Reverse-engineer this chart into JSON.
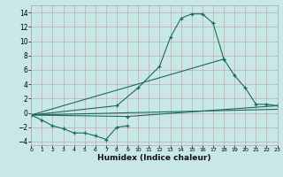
{
  "xlabel": "Humidex (Indice chaleur)",
  "bg_color": "#c8e8e8",
  "grid_color": "#c8a8a8",
  "line_color": "#1a6b5a",
  "xlim": [
    0,
    23
  ],
  "ylim": [
    -4.5,
    15
  ],
  "xticks": [
    0,
    1,
    2,
    3,
    4,
    5,
    6,
    7,
    8,
    9,
    10,
    11,
    12,
    13,
    14,
    15,
    16,
    17,
    18,
    19,
    20,
    21,
    22,
    23
  ],
  "yticks": [
    -4,
    -2,
    0,
    2,
    4,
    6,
    8,
    10,
    12,
    14
  ],
  "series1_x": [
    0,
    8,
    10,
    12,
    13,
    14,
    15,
    16,
    17,
    18
  ],
  "series1_y": [
    -0.3,
    1.0,
    3.5,
    6.5,
    10.5,
    13.2,
    13.8,
    13.8,
    12.5,
    7.5
  ],
  "series2_x": [
    0,
    18,
    19,
    20,
    21,
    22,
    23
  ],
  "series2_y": [
    -0.3,
    7.5,
    5.2,
    3.5,
    1.2,
    1.2,
    1.0
  ],
  "series3_x": [
    0,
    1,
    2,
    3,
    4,
    5,
    6,
    7,
    8,
    9
  ],
  "series3_y": [
    -0.3,
    -1.0,
    -1.8,
    -2.2,
    -2.8,
    -2.8,
    -3.2,
    -3.7,
    -2.0,
    -1.8
  ],
  "series4_x": [
    0,
    9,
    23
  ],
  "series4_y": [
    -0.3,
    -0.5,
    1.0
  ],
  "series5_x": [
    0,
    23
  ],
  "series5_y": [
    -0.3,
    0.5
  ]
}
